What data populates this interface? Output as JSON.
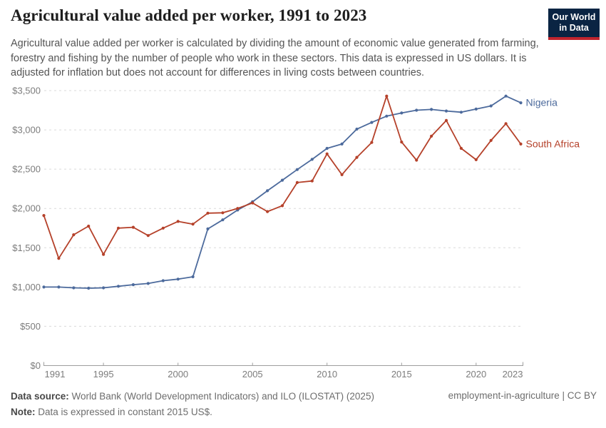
{
  "header": {
    "title": "Agricultural value added per worker, 1991 to 2023",
    "subtitle": "Agricultural value added per worker is calculated by dividing the amount of economic value generated from farming, forestry and fishing by the number of people who work in these sectors. This data is expressed in US dollars. It is adjusted for inflation but does not account for differences in living costs between countries.",
    "logo": {
      "line1": "Our World",
      "line2": "in Data",
      "bg_color": "#0A2443",
      "accent_color": "#C0242E"
    }
  },
  "chart_data": {
    "type": "line",
    "title": "Agricultural value added per worker, 1991 to 2023",
    "xlabel": "",
    "ylabel": "",
    "unit": "constant 2015 US$",
    "grid": "dashed-horizontal",
    "legend_position": "right-end-labels",
    "ylim": [
      0,
      3500
    ],
    "ytick_step": 500,
    "ytick_labels": [
      "$0",
      "$500",
      "$1,000",
      "$1,500",
      "$2,000",
      "$2,500",
      "$3,000",
      "$3,500"
    ],
    "xticks": [
      1991,
      1995,
      2000,
      2005,
      2010,
      2015,
      2020,
      2023
    ],
    "x": [
      1991,
      1992,
      1993,
      1994,
      1995,
      1996,
      1997,
      1998,
      1999,
      2000,
      2001,
      2002,
      2003,
      2004,
      2005,
      2006,
      2007,
      2008,
      2009,
      2010,
      2011,
      2012,
      2013,
      2014,
      2015,
      2016,
      2017,
      2018,
      2019,
      2020,
      2021,
      2022,
      2023
    ],
    "series": [
      {
        "name": "Nigeria",
        "color": "#4C6A9C",
        "values": [
          1000,
          1000,
          990,
          985,
          990,
          1010,
          1030,
          1045,
          1080,
          1100,
          1130,
          1740,
          1855,
          1980,
          2085,
          2225,
          2360,
          2495,
          2625,
          2765,
          2820,
          3010,
          3095,
          3175,
          3215,
          3250,
          3260,
          3240,
          3225,
          3265,
          3305,
          3430,
          3345
        ]
      },
      {
        "name": "South Africa",
        "color": "#B5412A",
        "values": [
          1910,
          1365,
          1665,
          1775,
          1415,
          1750,
          1760,
          1655,
          1750,
          1835,
          1800,
          1940,
          1945,
          2000,
          2070,
          1960,
          2035,
          2330,
          2350,
          2695,
          2430,
          2650,
          2840,
          3430,
          2845,
          2615,
          2920,
          3120,
          2765,
          2620,
          2865,
          3080,
          2820
        ]
      }
    ]
  },
  "footer": {
    "source_label": "Data source:",
    "source_text": " World Bank (World Development Indicators) and ILO (ILOSTAT) (2025)",
    "note_label": "Note:",
    "note_text": " Data is expressed in constant 2015 US$.",
    "right_text": "employment-in-agriculture | CC BY"
  }
}
